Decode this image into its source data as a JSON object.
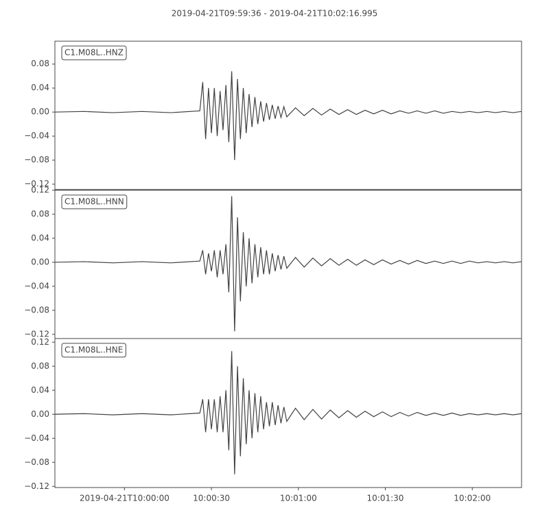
{
  "title": "2019-04-21T09:59:36  -  2019-04-21T10:02:16.995",
  "chart_data": [
    {
      "type": "line",
      "title": "C1.M08L..HNZ",
      "color": "#404040",
      "x": [
        0,
        10,
        20,
        30,
        40,
        50,
        51,
        52,
        53,
        54,
        55,
        56,
        57,
        58,
        59,
        60,
        61,
        62,
        63,
        64,
        65,
        66,
        67,
        68,
        69,
        70,
        71,
        72,
        73,
        74,
        75,
        76,
        77,
        78,
        79,
        80,
        83,
        86,
        89,
        92,
        95,
        98,
        101,
        104,
        107,
        110,
        113,
        116,
        119,
        122,
        125,
        128,
        131,
        134,
        137,
        140,
        143,
        146,
        149,
        152,
        155,
        158,
        161
      ],
      "values": [
        0,
        0.001,
        -0.001,
        0.001,
        -0.001,
        0.002,
        0.05,
        -0.045,
        0.04,
        -0.035,
        0.04,
        -0.04,
        0.035,
        -0.03,
        0.045,
        -0.05,
        0.068,
        -0.08,
        0.055,
        -0.045,
        0.04,
        -0.035,
        0.03,
        -0.025,
        0.025,
        -0.02,
        0.018,
        -0.016,
        0.015,
        -0.013,
        0.012,
        -0.011,
        0.01,
        -0.009,
        0.009,
        -0.008,
        0.007,
        -0.006,
        0.006,
        -0.005,
        0.005,
        -0.004,
        0.004,
        -0.004,
        0.003,
        -0.003,
        0.003,
        -0.003,
        0.002,
        -0.002,
        0.002,
        -0.002,
        0.002,
        -0.002,
        0.001,
        -0.001,
        0.001,
        -0.001,
        0.001,
        -0.001,
        0.001,
        -0.001,
        0.001
      ],
      "xlim": [
        0,
        160.995
      ],
      "ylim": [
        -0.129,
        0.118
      ],
      "yticks": [
        {
          "value": -0.12,
          "label": "−0.12"
        },
        {
          "value": -0.08,
          "label": "−0.08"
        },
        {
          "value": -0.04,
          "label": "−0.04"
        },
        {
          "value": 0,
          "label": "0.00"
        },
        {
          "value": 0.04,
          "label": "0.04"
        },
        {
          "value": 0.08,
          "label": "0.08"
        }
      ]
    },
    {
      "type": "line",
      "title": "C1.M08L..HNN",
      "color": "#404040",
      "x": [
        0,
        10,
        20,
        30,
        40,
        50,
        51,
        52,
        53,
        54,
        55,
        56,
        57,
        58,
        59,
        60,
        61,
        62,
        63,
        64,
        65,
        66,
        67,
        68,
        69,
        70,
        71,
        72,
        73,
        74,
        75,
        76,
        77,
        78,
        79,
        80,
        83,
        86,
        89,
        92,
        95,
        98,
        101,
        104,
        107,
        110,
        113,
        116,
        119,
        122,
        125,
        128,
        131,
        134,
        137,
        140,
        143,
        146,
        149,
        152,
        155,
        158,
        161
      ],
      "values": [
        0,
        0.001,
        -0.001,
        0.001,
        -0.001,
        0.002,
        0.02,
        -0.02,
        0.015,
        -0.015,
        0.02,
        -0.025,
        0.02,
        -0.02,
        0.03,
        -0.05,
        0.11,
        -0.115,
        0.075,
        -0.065,
        0.05,
        -0.04,
        0.04,
        -0.035,
        0.03,
        -0.025,
        0.025,
        -0.02,
        0.02,
        -0.02,
        0.015,
        -0.015,
        0.012,
        -0.012,
        0.01,
        -0.01,
        0.008,
        -0.008,
        0.007,
        -0.006,
        0.006,
        -0.005,
        0.005,
        -0.005,
        0.004,
        -0.004,
        0.004,
        -0.003,
        0.003,
        -0.003,
        0.003,
        -0.002,
        0.002,
        -0.002,
        0.002,
        -0.002,
        0.002,
        -0.001,
        0.001,
        -0.001,
        0.001,
        -0.001,
        0.001
      ],
      "xlim": [
        0,
        160.995
      ],
      "ylim": [
        -0.127,
        0.12
      ],
      "yticks": [
        {
          "value": -0.12,
          "label": "−0.12"
        },
        {
          "value": -0.08,
          "label": "−0.08"
        },
        {
          "value": -0.04,
          "label": "−0.04"
        },
        {
          "value": 0,
          "label": "0.00"
        },
        {
          "value": 0.04,
          "label": "0.04"
        },
        {
          "value": 0.08,
          "label": "0.08"
        },
        {
          "value": 0.12,
          "label": "0.12"
        }
      ]
    },
    {
      "type": "line",
      "title": "C1.M08L..HNE",
      "color": "#404040",
      "x": [
        0,
        10,
        20,
        30,
        40,
        50,
        51,
        52,
        53,
        54,
        55,
        56,
        57,
        58,
        59,
        60,
        61,
        62,
        63,
        64,
        65,
        66,
        67,
        68,
        69,
        70,
        71,
        72,
        73,
        74,
        75,
        76,
        77,
        78,
        79,
        80,
        83,
        86,
        89,
        92,
        95,
        98,
        101,
        104,
        107,
        110,
        113,
        116,
        119,
        122,
        125,
        128,
        131,
        134,
        137,
        140,
        143,
        146,
        149,
        152,
        155,
        158,
        161
      ],
      "values": [
        0,
        0.001,
        -0.001,
        0.001,
        -0.001,
        0.002,
        0.025,
        -0.03,
        0.025,
        -0.025,
        0.025,
        -0.03,
        0.03,
        -0.03,
        0.04,
        -0.06,
        0.105,
        -0.1,
        0.08,
        -0.07,
        0.06,
        -0.05,
        0.04,
        -0.04,
        0.035,
        -0.03,
        0.03,
        -0.025,
        0.02,
        -0.02,
        0.02,
        -0.018,
        0.015,
        -0.015,
        0.012,
        -0.012,
        0.01,
        -0.009,
        0.008,
        -0.008,
        0.007,
        -0.006,
        0.006,
        -0.005,
        0.005,
        -0.004,
        0.004,
        -0.004,
        0.003,
        -0.003,
        0.003,
        -0.002,
        0.002,
        -0.002,
        0.002,
        -0.002,
        0.001,
        -0.001,
        0.001,
        -0.001,
        0.001,
        -0.001,
        0.001
      ],
      "xlim": [
        0,
        160.995
      ],
      "ylim": [
        -0.122,
        0.126
      ],
      "yticks": [
        {
          "value": -0.12,
          "label": "−0.12"
        },
        {
          "value": -0.08,
          "label": "−0.08"
        },
        {
          "value": -0.04,
          "label": "−0.04"
        },
        {
          "value": 0,
          "label": "0.00"
        },
        {
          "value": 0.04,
          "label": "0.04"
        },
        {
          "value": 0.08,
          "label": "0.08"
        },
        {
          "value": 0.12,
          "label": "0.12"
        }
      ],
      "xticks": [
        {
          "value": 24,
          "label": "2019-04-21T10:00:00"
        },
        {
          "value": 54,
          "label": "10:00:30"
        },
        {
          "value": 84,
          "label": "10:01:00"
        },
        {
          "value": 114,
          "label": "10:01:30"
        },
        {
          "value": 144,
          "label": "10:02:00"
        }
      ]
    }
  ]
}
